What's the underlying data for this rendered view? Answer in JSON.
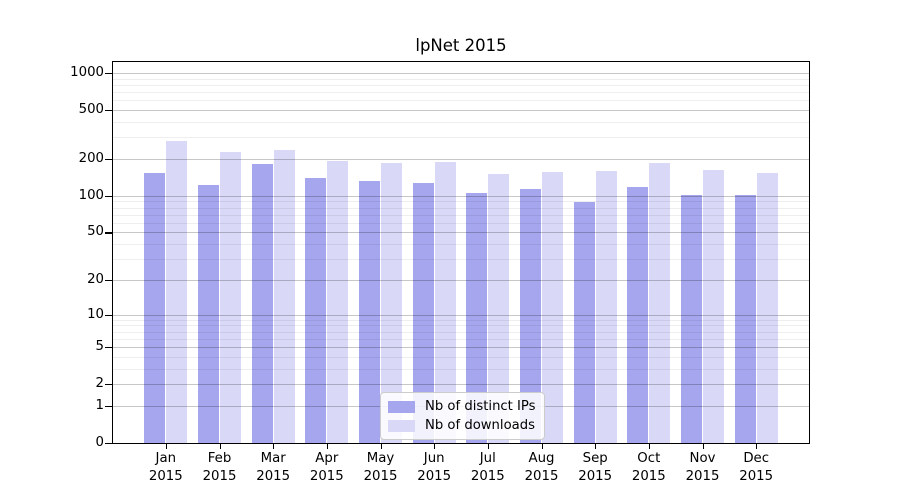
{
  "title": "lpNet 2015",
  "chart_data": {
    "type": "bar",
    "title": "lpNet 2015",
    "categories": [
      "Jan 2015",
      "Feb 2015",
      "Mar 2015",
      "Apr 2015",
      "May 2015",
      "Jun 2015",
      "Jul 2015",
      "Aug 2015",
      "Sep 2015",
      "Oct 2015",
      "Nov 2015",
      "Dec 2015"
    ],
    "series": [
      {
        "name": "Nb of distinct IPs",
        "color": "#a6a6ee",
        "values": [
          155,
          122,
          181,
          140,
          133,
          127,
          105,
          114,
          89,
          118,
          102,
          102
        ]
      },
      {
        "name": "Nb of downloads",
        "color": "#d9d9f7",
        "values": [
          282,
          230,
          238,
          192,
          186,
          190,
          150,
          158,
          160,
          187,
          163,
          153
        ]
      }
    ],
    "xlabel": "",
    "ylabel": "",
    "yscale": "symlog-log1p",
    "yticks": [
      0,
      1,
      2,
      5,
      10,
      20,
      50,
      100,
      200,
      500,
      1000
    ],
    "minor_yticks": [
      3,
      4,
      6,
      7,
      8,
      9,
      30,
      40,
      60,
      70,
      80,
      90,
      300,
      400,
      600,
      700,
      800,
      900
    ],
    "ylim": [
      0,
      1226
    ],
    "grid": true,
    "legend_position": "bottom-center",
    "colors": {
      "frame": "#000000",
      "grid_major": "#c7c7c7",
      "grid_minor": "#ededed",
      "legend_border": "#cccccc"
    }
  }
}
